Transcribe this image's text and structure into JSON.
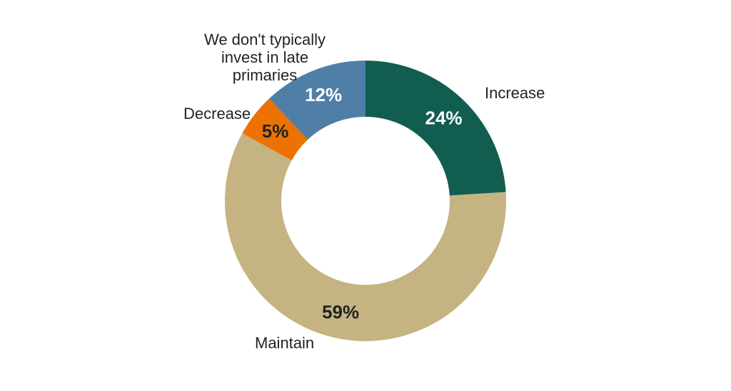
{
  "chart_data": {
    "type": "pie",
    "subtype": "donut",
    "title": "",
    "start_angle_deg": 0,
    "direction": "clockwise",
    "legend_position": "outside-labels",
    "total": 100,
    "slices": [
      {
        "label": "Increase",
        "value": 24,
        "display": "24%",
        "color": "#115E50",
        "value_label_color": "#FFFFFF"
      },
      {
        "label": "Maintain",
        "value": 59,
        "display": "59%",
        "color": "#C5B381",
        "value_label_color": "#1E2323"
      },
      {
        "label": "Decrease",
        "value": 5,
        "display": "5%",
        "color": "#EC7203",
        "value_label_color": "#1E2323"
      },
      {
        "label": "We don't typically invest in late primaries",
        "value": 12,
        "display": "12%",
        "color": "#4F7EA7",
        "value_label_color": "#FFFFFF"
      }
    ]
  }
}
